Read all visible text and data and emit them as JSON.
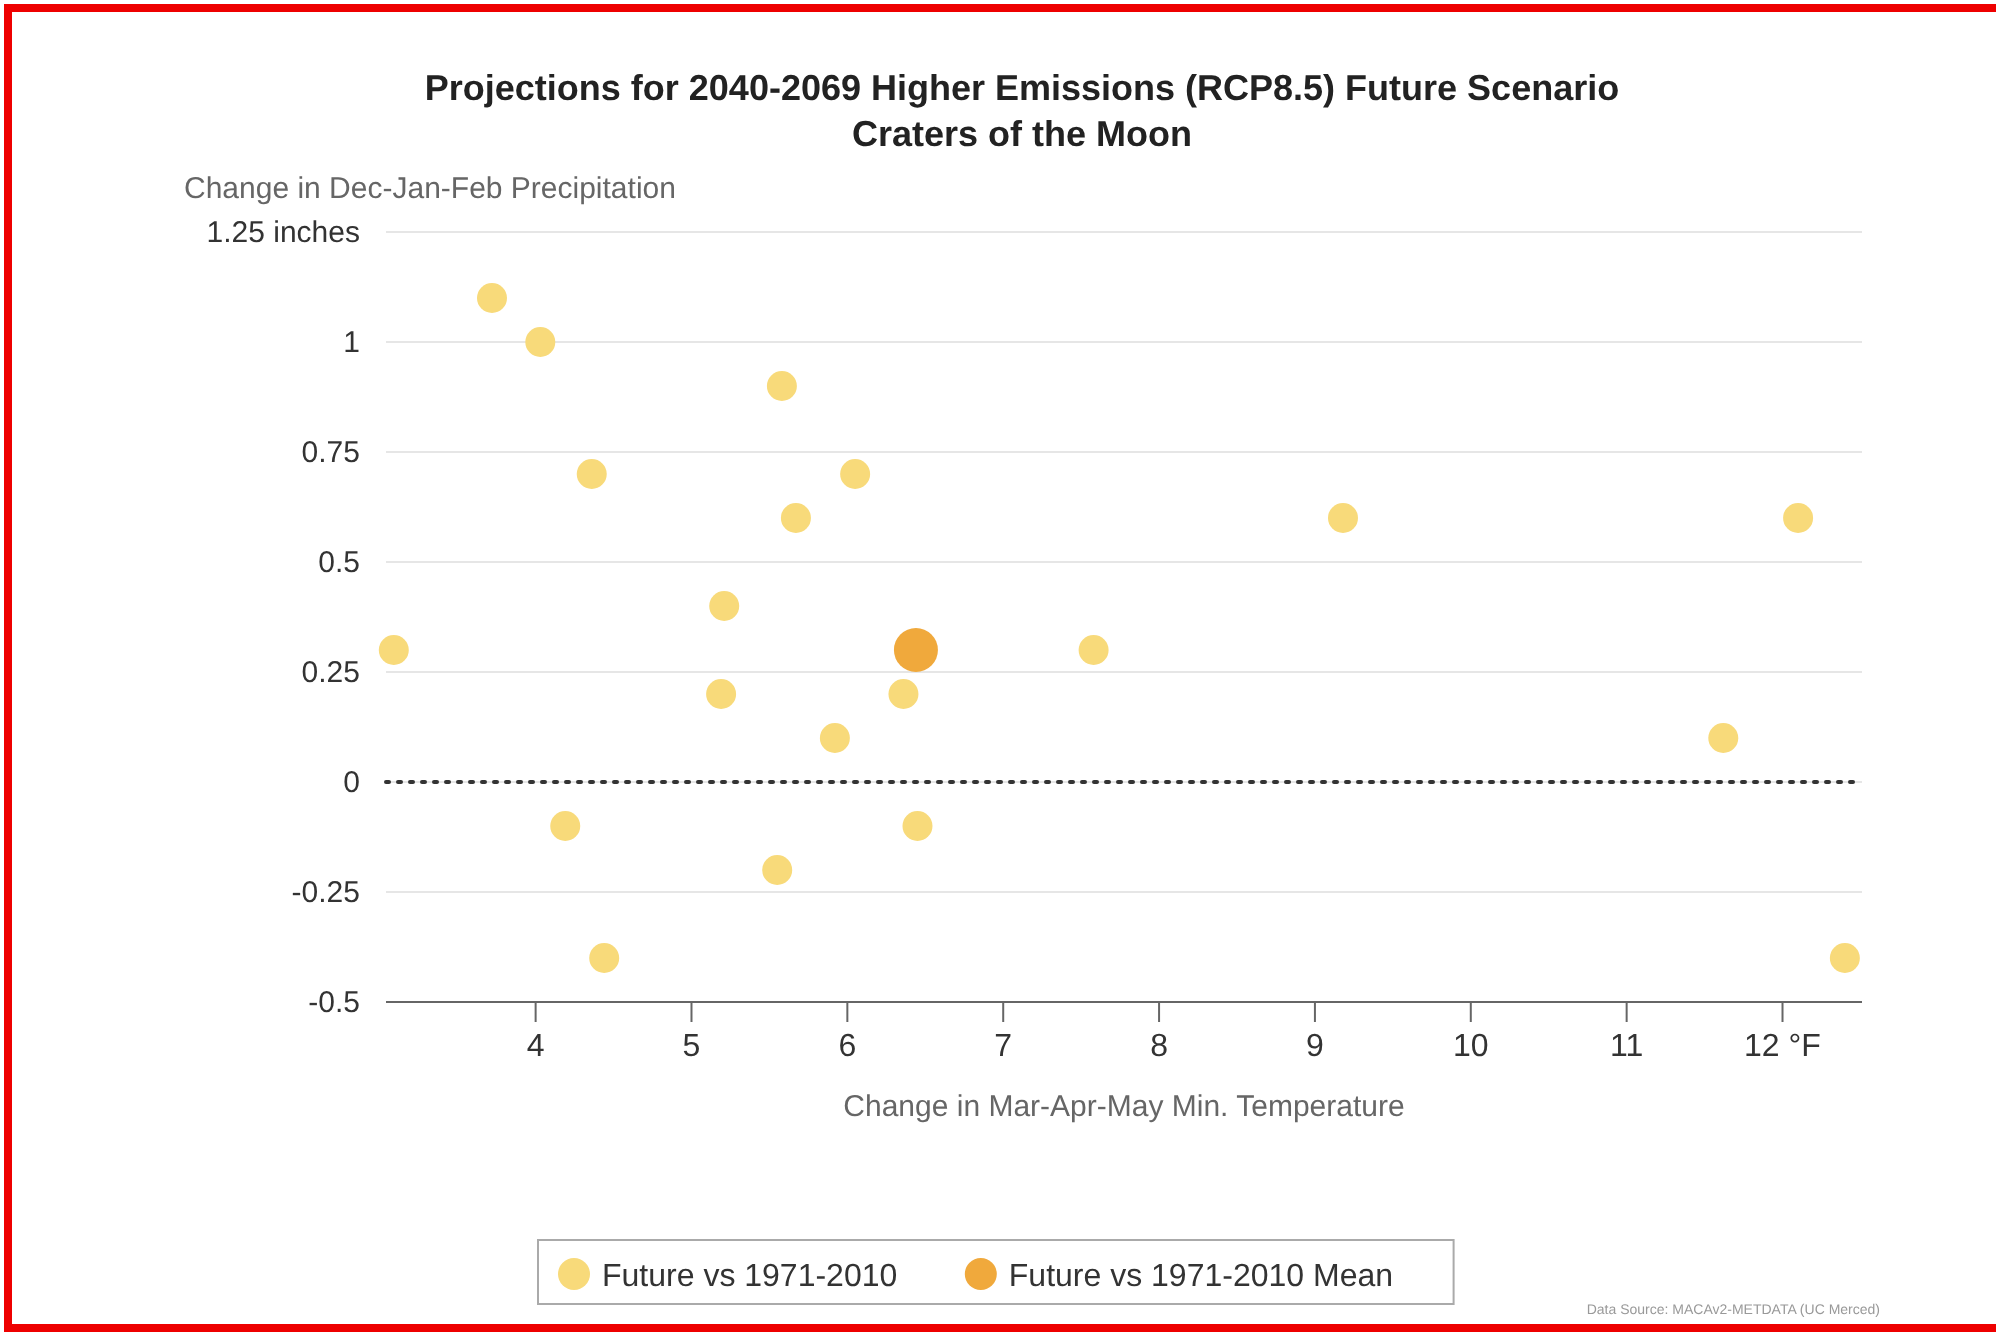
{
  "chart_data": {
    "type": "scatter",
    "title": "Projections for 2040-2069 Higher Emissions (RCP8.5) Future Scenario",
    "subtitle": "Craters of the Moon",
    "xlabel": "Change in Mar-Apr-May Min. Temperature",
    "ylabel": "Change in Dec-Jan-Feb Precipitation",
    "xlim": [
      3.04,
      12.51
    ],
    "ylim": [
      -0.5,
      1.25
    ],
    "xticks": [
      4,
      5,
      6,
      7,
      8,
      9,
      10,
      11,
      {
        "value": 12,
        "label": "12 °F"
      }
    ],
    "yticks": [
      -0.5,
      -0.25,
      0,
      0.25,
      0.5,
      0.75,
      1,
      {
        "value": 1.25,
        "label": "1.25 inches"
      }
    ],
    "grid": "y",
    "legend": "bottom",
    "marker": "circle",
    "ref_lines": [
      {
        "axis": "y",
        "value": 0,
        "line_style": "dotted",
        "color": "#333333"
      }
    ],
    "series": [
      {
        "name": "Future vs 1971-2010",
        "color": "#f8da7a",
        "x": [
          3.72,
          4.03,
          4.36,
          3.09,
          5.58,
          5.67,
          6.05,
          5.21,
          5.19,
          5.92,
          6.36,
          7.58,
          4.19,
          6.45,
          5.55,
          4.44,
          9.18,
          11.62,
          12.1,
          12.4
        ],
        "values": [
          1.1,
          1.0,
          0.7,
          0.3,
          0.9,
          0.6,
          0.7,
          0.4,
          0.2,
          0.1,
          0.2,
          0.3,
          -0.1,
          -0.1,
          -0.2,
          -0.4,
          0.6,
          0.1,
          0.6,
          -0.4
        ]
      },
      {
        "name": "Future vs 1971-2010 Mean",
        "color": "#f0a93c",
        "x": [
          6.44
        ],
        "values": [
          0.3
        ]
      }
    ],
    "annotations": [
      "Data Source: MACAv2-METDATA (UC Merced)"
    ]
  }
}
